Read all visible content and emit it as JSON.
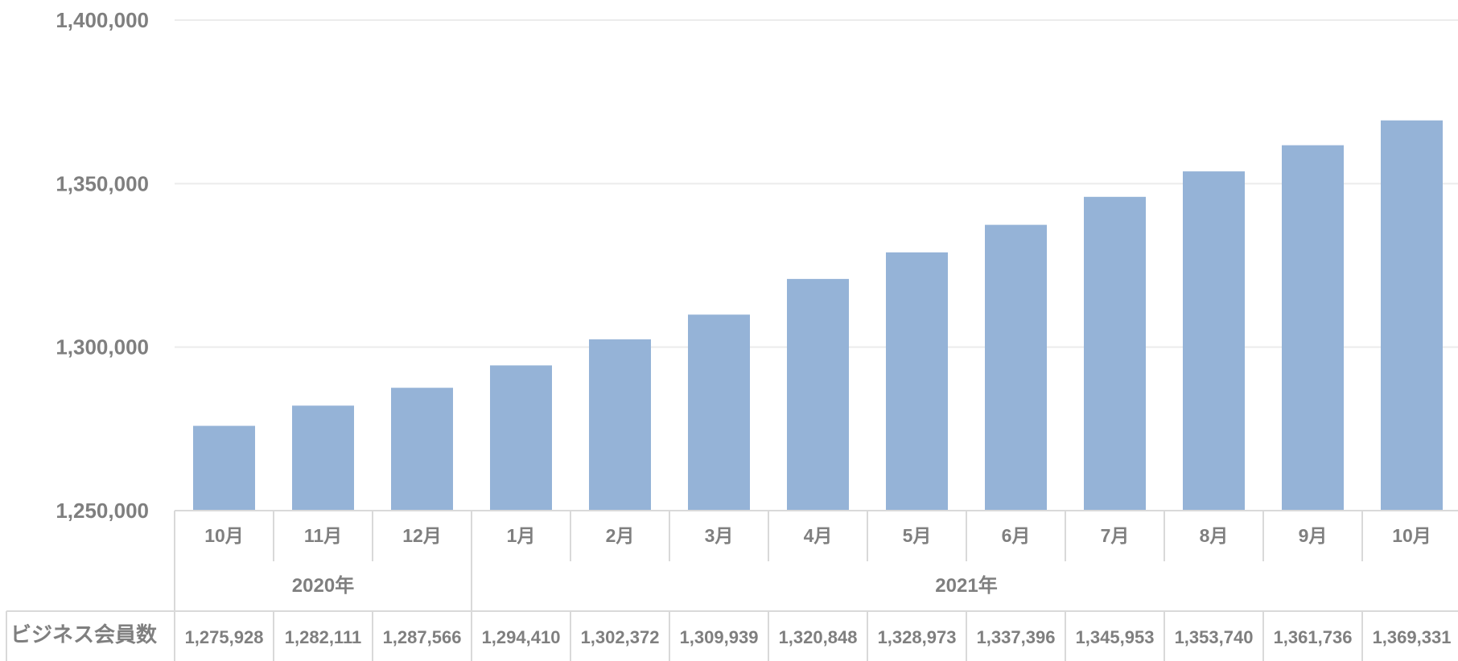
{
  "chart_data": {
    "type": "bar",
    "series": [
      {
        "name": "ビジネス会員数",
        "color": "#95b3d7",
        "values": [
          1275928,
          1282111,
          1287566,
          1294410,
          1302372,
          1309939,
          1320848,
          1328973,
          1337396,
          1345953,
          1353740,
          1361736,
          1369331
        ],
        "value_labels": [
          "1,275,928",
          "1,282,111",
          "1,287,566",
          "1,294,410",
          "1,302,372",
          "1,309,939",
          "1,320,848",
          "1,328,973",
          "1,337,396",
          "1,345,953",
          "1,353,740",
          "1,361,736",
          "1,369,331"
        ]
      }
    ],
    "categories": [
      "10月",
      "11月",
      "12月",
      "1月",
      "2月",
      "3月",
      "4月",
      "5月",
      "6月",
      "7月",
      "8月",
      "9月",
      "10月"
    ],
    "category_groups": [
      {
        "label": "2020年",
        "count": 3
      },
      {
        "label": "2021年",
        "count": 10
      }
    ],
    "yticks": [
      1250000,
      1300000,
      1350000,
      1400000
    ],
    "ytick_labels": [
      "1,250,000",
      "1,300,000",
      "1,350,000",
      "1,400,000"
    ],
    "ylim": [
      1250000,
      1400000
    ],
    "grid": true,
    "data_table": true,
    "title": "",
    "xlabel": "",
    "ylabel": ""
  }
}
